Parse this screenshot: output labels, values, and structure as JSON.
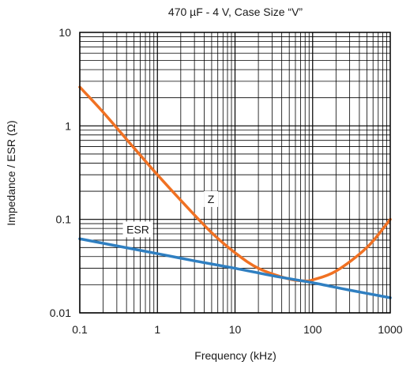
{
  "chart_data": {
    "type": "line",
    "title": "470 µF - 4 V, Case Size “V”",
    "xlabel": "Frequency (kHz)",
    "ylabel": "Impedance / ESR (Ω)",
    "x_scale": "log",
    "y_scale": "log",
    "xlim": [
      0.1,
      1000
    ],
    "ylim": [
      0.01,
      10
    ],
    "grid": true,
    "x_ticks": [
      "0.1",
      "1",
      "10",
      "100",
      "1000"
    ],
    "y_ticks": [
      "0.01",
      "0.1",
      "1",
      "10"
    ],
    "series": [
      {
        "name": "Z",
        "color": "#f07123",
        "x": [
          0.1,
          0.2,
          0.5,
          1,
          2,
          5,
          10,
          20,
          50,
          80,
          100,
          200,
          500,
          1000
        ],
        "y": [
          2.6,
          1.4,
          0.58,
          0.3,
          0.16,
          0.072,
          0.044,
          0.03,
          0.023,
          0.022,
          0.0225,
          0.028,
          0.05,
          0.1
        ]
      },
      {
        "name": "ESR",
        "color": "#2f7fc1",
        "x": [
          0.1,
          0.3,
          1,
          3,
          10,
          30,
          100,
          300,
          1000
        ],
        "y": [
          0.062,
          0.052,
          0.043,
          0.036,
          0.03,
          0.025,
          0.021,
          0.0175,
          0.0145
        ]
      }
    ]
  }
}
